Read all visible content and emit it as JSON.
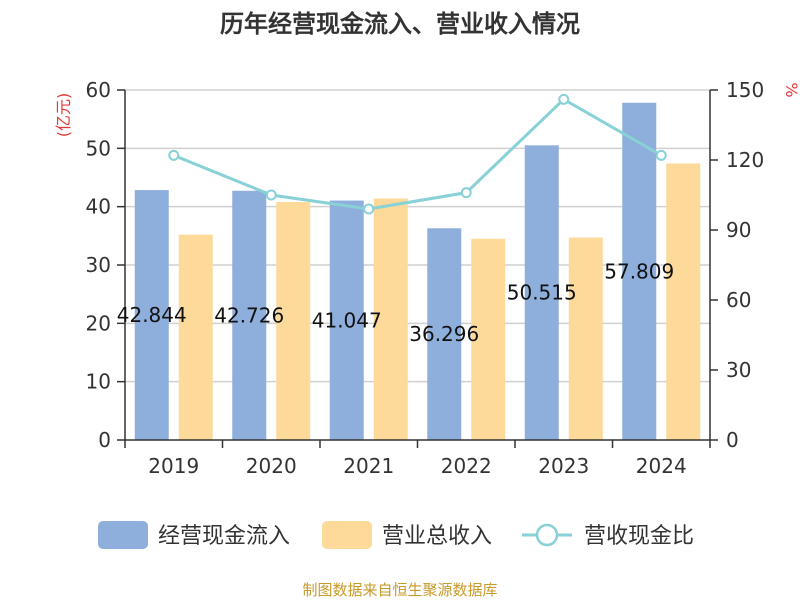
{
  "chart_data": {
    "type": "bar",
    "title": "历年经营现金流入、营业收入情况",
    "categories": [
      "2019",
      "2020",
      "2021",
      "2022",
      "2023",
      "2024"
    ],
    "y_left": {
      "unit": "(亿元)",
      "range": [
        0,
        60
      ],
      "ticks": [
        0,
        10,
        20,
        30,
        40,
        50,
        60
      ]
    },
    "y_right": {
      "unit": "%",
      "range": [
        0,
        150
      ],
      "ticks": [
        0,
        30,
        60,
        90,
        120,
        150
      ]
    },
    "series": [
      {
        "name": "经营现金流入",
        "kind": "bar",
        "axis": "left",
        "color": "#8eaedb",
        "values": [
          42.844,
          42.726,
          41.047,
          36.296,
          50.515,
          57.809
        ],
        "labels": [
          "42.844",
          "42.726",
          "41.047",
          "36.296",
          "50.515",
          "57.809"
        ]
      },
      {
        "name": "营业总收入",
        "kind": "bar",
        "axis": "left",
        "color": "#fdd99a",
        "values": [
          35.2,
          40.8,
          41.4,
          34.5,
          34.7,
          47.4
        ]
      },
      {
        "name": "营收现金比",
        "kind": "line",
        "axis": "right",
        "color": "#88d1d6",
        "values": [
          122,
          105,
          99,
          106,
          146,
          122
        ]
      }
    ],
    "grid": true,
    "legend": "bottom",
    "source": "制图数据来自恒生聚源数据库"
  }
}
